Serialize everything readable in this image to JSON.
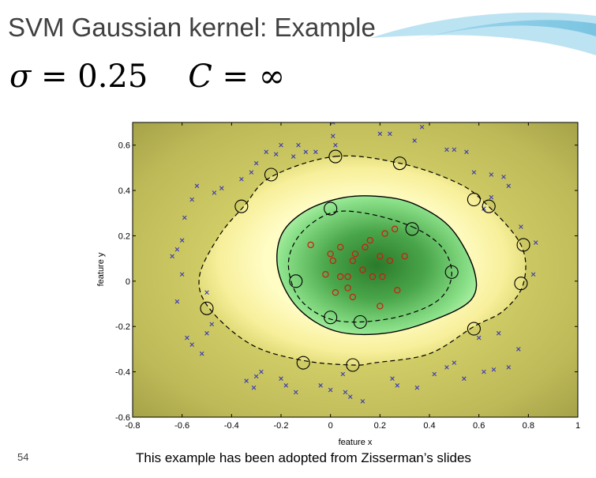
{
  "slide": {
    "title": "SVM Gaussian kernel: Example",
    "formula": {
      "sigma_symbol": "σ",
      "sigma_eq": " = 0.25",
      "c_symbol": "C",
      "c_eq": " = ∞"
    },
    "slide_number": "54",
    "caption": "This example has been adopted from Zisserman’s slides"
  },
  "chart_data": {
    "type": "scatter",
    "title": "",
    "xlabel": "feature x",
    "ylabel": "feature y",
    "xlim": [
      -0.8,
      1
    ],
    "ylim": [
      -0.6,
      0.7
    ],
    "xticks": [
      -0.8,
      -0.6,
      -0.4,
      -0.2,
      0,
      0.2,
      0.4,
      0.6,
      0.8,
      1
    ],
    "xtick_labels": [
      "-0.8",
      "-0.6",
      "-0.4",
      "-0.2",
      "0",
      "0.2",
      "0.4",
      "0.6",
      "0.8",
      "1"
    ],
    "yticks": [
      -0.6,
      -0.4,
      -0.2,
      0,
      0.2,
      0.4,
      0.6
    ],
    "ytick_labels": [
      "-0.6",
      "-0.4",
      "-0.2",
      "0",
      "0.2",
      "0.4",
      "0.6"
    ],
    "grid": false,
    "colors": {
      "negative_marker": "#3a3ab0",
      "positive_marker": "#d01a10",
      "support_vector_ring": "#000000",
      "boundary": "#000000",
      "background_outer": "#b4b24e",
      "background_band": "#fffcc4",
      "background_inner": "#2a7a2a"
    },
    "decision_boundary": {
      "x": [
        0.36,
        0.49,
        0.58,
        0.57,
        0.42,
        0.22,
        0.02,
        -0.13,
        -0.21,
        -0.2,
        -0.1,
        0.06,
        0.23
      ],
      "y": [
        0.33,
        0.23,
        0.05,
        -0.08,
        -0.17,
        -0.23,
        -0.22,
        -0.12,
        0.04,
        0.2,
        0.31,
        0.37,
        0.37
      ]
    },
    "margin_inner": {
      "x": [
        0.33,
        0.45,
        0.49,
        0.44,
        0.3,
        0.12,
        -0.02,
        -0.13,
        -0.17,
        -0.12,
        0.0,
        0.14
      ],
      "y": [
        0.24,
        0.15,
        0.03,
        -0.08,
        -0.15,
        -0.18,
        -0.16,
        -0.07,
        0.08,
        0.21,
        0.3,
        0.3
      ]
    },
    "margin_outer": {
      "x": [
        0.02,
        0.28,
        0.5,
        0.62,
        0.77,
        0.78,
        0.7,
        0.58,
        0.4,
        0.18,
        0.09,
        -0.11,
        -0.32,
        -0.49,
        -0.53,
        -0.45,
        -0.35,
        -0.24
      ],
      "y": [
        0.55,
        0.52,
        0.44,
        0.35,
        0.16,
        -0.01,
        -0.13,
        -0.2,
        -0.32,
        -0.36,
        -0.37,
        -0.35,
        -0.28,
        -0.12,
        0.02,
        0.2,
        0.33,
        0.46
      ]
    },
    "series": [
      {
        "role": "negative",
        "marker": "x",
        "x": [
          0.01,
          0.01,
          0.02,
          -0.06,
          0.2,
          0.24,
          0.37,
          0.34,
          0.47,
          0.5,
          0.55,
          0.58,
          0.65,
          0.7,
          -0.1,
          -0.13,
          -0.15,
          -0.2,
          -0.22,
          -0.26,
          -0.3,
          -0.32,
          -0.36,
          -0.44,
          -0.47,
          -0.54,
          -0.56,
          -0.59,
          -0.6,
          -0.62,
          -0.64,
          -0.6,
          -0.62,
          -0.5,
          -0.48,
          -0.5,
          -0.56,
          -0.52,
          -0.58,
          -0.3,
          -0.28,
          -0.34,
          -0.31,
          -0.2,
          -0.18,
          -0.14,
          -0.04,
          0.0,
          0.05,
          0.08,
          0.25,
          0.27,
          0.35,
          0.42,
          0.47,
          0.5,
          0.54,
          0.62,
          0.66,
          0.72,
          0.76,
          0.68,
          0.6,
          0.62,
          0.83,
          0.82,
          0.65,
          0.72,
          0.77,
          0.06,
          0.13
        ],
        "y": [
          0.7,
          0.64,
          0.6,
          0.57,
          0.65,
          0.65,
          0.68,
          0.62,
          0.58,
          0.58,
          0.57,
          0.48,
          0.47,
          0.46,
          0.57,
          0.6,
          0.55,
          0.6,
          0.56,
          0.57,
          0.52,
          0.48,
          0.45,
          0.41,
          0.39,
          0.42,
          0.36,
          0.28,
          0.18,
          0.14,
          0.11,
          0.03,
          -0.09,
          -0.05,
          -0.19,
          -0.23,
          -0.28,
          -0.32,
          -0.25,
          -0.42,
          -0.4,
          -0.44,
          -0.47,
          -0.43,
          -0.46,
          -0.49,
          -0.46,
          -0.48,
          -0.41,
          -0.51,
          -0.43,
          -0.46,
          -0.47,
          -0.41,
          -0.38,
          -0.36,
          -0.43,
          -0.4,
          -0.39,
          -0.38,
          -0.3,
          -0.23,
          -0.25,
          0.32,
          0.17,
          0.03,
          0.37,
          0.42,
          0.24,
          -0.49,
          -0.53
        ]
      },
      {
        "role": "positive",
        "marker": "o",
        "x": [
          -0.08,
          0.0,
          0.04,
          0.1,
          0.16,
          0.22,
          0.26,
          0.3,
          0.01,
          0.09,
          0.14,
          0.2,
          0.24,
          0.04,
          -0.02,
          0.07,
          0.13,
          0.17,
          0.21,
          0.27,
          0.07,
          0.02,
          0.09,
          0.2
        ],
        "y": [
          0.16,
          0.12,
          0.15,
          0.12,
          0.18,
          0.21,
          0.23,
          0.11,
          0.09,
          0.09,
          0.15,
          0.11,
          0.09,
          0.02,
          0.03,
          0.02,
          0.05,
          0.02,
          0.02,
          -0.04,
          -0.03,
          -0.05,
          -0.07,
          -0.11
        ]
      },
      {
        "role": "support-vectors",
        "marker": "ring",
        "x": [
          0.02,
          0.28,
          -0.24,
          -0.36,
          0.58,
          0.64,
          0.78,
          0.77,
          0.49,
          0.33,
          0.0,
          0.58,
          0.12,
          0.0,
          -0.14,
          -0.5,
          -0.11,
          0.09
        ],
        "y": [
          0.55,
          0.52,
          0.47,
          0.33,
          0.36,
          0.33,
          0.16,
          -0.01,
          0.04,
          0.23,
          0.32,
          -0.21,
          -0.18,
          -0.16,
          0.0,
          -0.12,
          -0.36,
          -0.37
        ]
      }
    ]
  }
}
